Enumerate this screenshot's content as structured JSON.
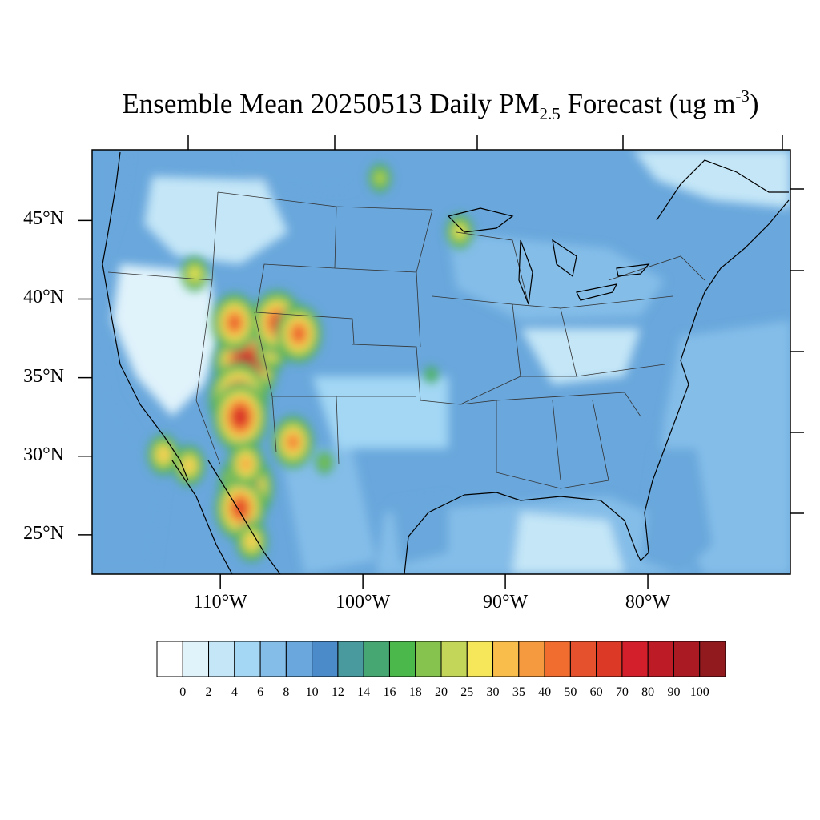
{
  "title": {
    "prefix": "Ensemble Mean 20250513 Daily PM",
    "sub": "2.5",
    "middle": " Forecast (ug m",
    "sup": "-3",
    "suffix": ")"
  },
  "map": {
    "lat_range": [
      22.5,
      49.5
    ],
    "lon_range": [
      -119,
      -70
    ],
    "lat_ticks": [
      {
        "value": 45,
        "label": "45°N"
      },
      {
        "value": 40,
        "label": "40°N"
      },
      {
        "value": 35,
        "label": "35°N"
      },
      {
        "value": 30,
        "label": "30°N"
      },
      {
        "value": 25,
        "label": "25°N"
      }
    ],
    "lon_ticks": [
      {
        "value": -110,
        "label": "110°W"
      },
      {
        "value": -100,
        "label": "100°W"
      },
      {
        "value": -90,
        "label": "90°W"
      },
      {
        "value": -80,
        "label": "80°W"
      }
    ],
    "background_level": 5
  },
  "colorbar": {
    "colors": [
      "#ffffff",
      "#e0f3fb",
      "#c4e6f7",
      "#a3d7f4",
      "#84bde8",
      "#69a7dc",
      "#4b8bca",
      "#489a9f",
      "#46a772",
      "#4ab84a",
      "#85c24e",
      "#c3d659",
      "#f6e659",
      "#f8bd4b",
      "#f59a3f",
      "#f06c2f",
      "#e5512c",
      "#dd3927",
      "#d21f2b",
      "#bd1c27",
      "#a91a23",
      "#911a1f"
    ],
    "labels": [
      "0",
      "2",
      "4",
      "6",
      "8",
      "10",
      "12",
      "14",
      "16",
      "18",
      "20",
      "25",
      "30",
      "35",
      "40",
      "50",
      "60",
      "70",
      "80",
      "90",
      "100"
    ]
  },
  "hotspots": [
    {
      "lon": -108.2,
      "lat": 35.8,
      "level": 20
    },
    {
      "lon": -108.7,
      "lat": 33.6,
      "level": 19
    },
    {
      "lon": -108.6,
      "lat": 32.5,
      "level": 18
    },
    {
      "lon": -108.2,
      "lat": 28.0,
      "level": 18
    },
    {
      "lon": -108.6,
      "lat": 26.7,
      "level": 17
    },
    {
      "lon": -108.2,
      "lat": 29.5,
      "level": 14
    },
    {
      "lon": -104.9,
      "lat": 30.9,
      "level": 15
    },
    {
      "lon": -112.2,
      "lat": 29.4,
      "level": 13
    },
    {
      "lon": -114.0,
      "lat": 30.1,
      "level": 13
    },
    {
      "lon": -107.8,
      "lat": 24.6,
      "level": 13
    },
    {
      "lon": -111.8,
      "lat": 41.6,
      "level": 12
    },
    {
      "lon": -106.4,
      "lat": 36.7,
      "level": 13
    },
    {
      "lon": -106.0,
      "lat": 38.5,
      "level": 17
    },
    {
      "lon": -109.0,
      "lat": 38.5,
      "level": 16
    },
    {
      "lon": -104.5,
      "lat": 37.8,
      "level": 16
    },
    {
      "lon": -93.2,
      "lat": 44.3,
      "level": 12
    },
    {
      "lon": -98.8,
      "lat": 47.7,
      "level": 11
    },
    {
      "lon": -102.7,
      "lat": 29.6,
      "level": 10
    },
    {
      "lon": -95.2,
      "lat": 35.2,
      "level": 9
    }
  ]
}
